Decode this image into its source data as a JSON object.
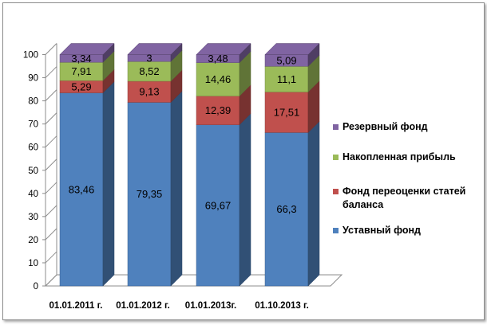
{
  "chart_data": {
    "type": "bar",
    "stacked": true,
    "style": "3d-column",
    "categories": [
      "01.01.2011 г.",
      "01.01.2012 г.",
      "01.01.2013г.",
      "01.10.2013 г."
    ],
    "series": [
      {
        "name": "Уставный фонд",
        "color": "#4f81bd",
        "values": [
          83.46,
          79.35,
          69.67,
          66.3
        ],
        "labels": [
          "83,46",
          "79,35",
          "69,67",
          "66,3"
        ]
      },
      {
        "name": "Фонд переоценки статей баланса",
        "color": "#c0504d",
        "values": [
          5.29,
          9.13,
          12.39,
          17.51
        ],
        "labels": [
          "5,29",
          "9,13",
          "12,39",
          "17,51"
        ]
      },
      {
        "name": "Накопленная прибыль",
        "color": "#9bbb59",
        "values": [
          7.91,
          8.52,
          14.46,
          11.1
        ],
        "labels": [
          "7,91",
          "8,52",
          "14,46",
          "11,1"
        ]
      },
      {
        "name": "Резервный фонд",
        "color": "#8064a2",
        "values": [
          3.34,
          3,
          3.48,
          5.09
        ],
        "labels": [
          "3,34",
          "3",
          "3,48",
          "5,09"
        ]
      }
    ],
    "ylim": [
      0,
      100
    ],
    "yticks": [
      "0",
      "10",
      "20",
      "30",
      "40",
      "50",
      "60",
      "70",
      "80",
      "90",
      "100"
    ],
    "grid": false,
    "legend_position": "right",
    "legend_order": [
      "Резервный фонд",
      "Накопленная прибыль",
      "Фонд переоценки статей баланса",
      "Уставный фонд"
    ]
  }
}
